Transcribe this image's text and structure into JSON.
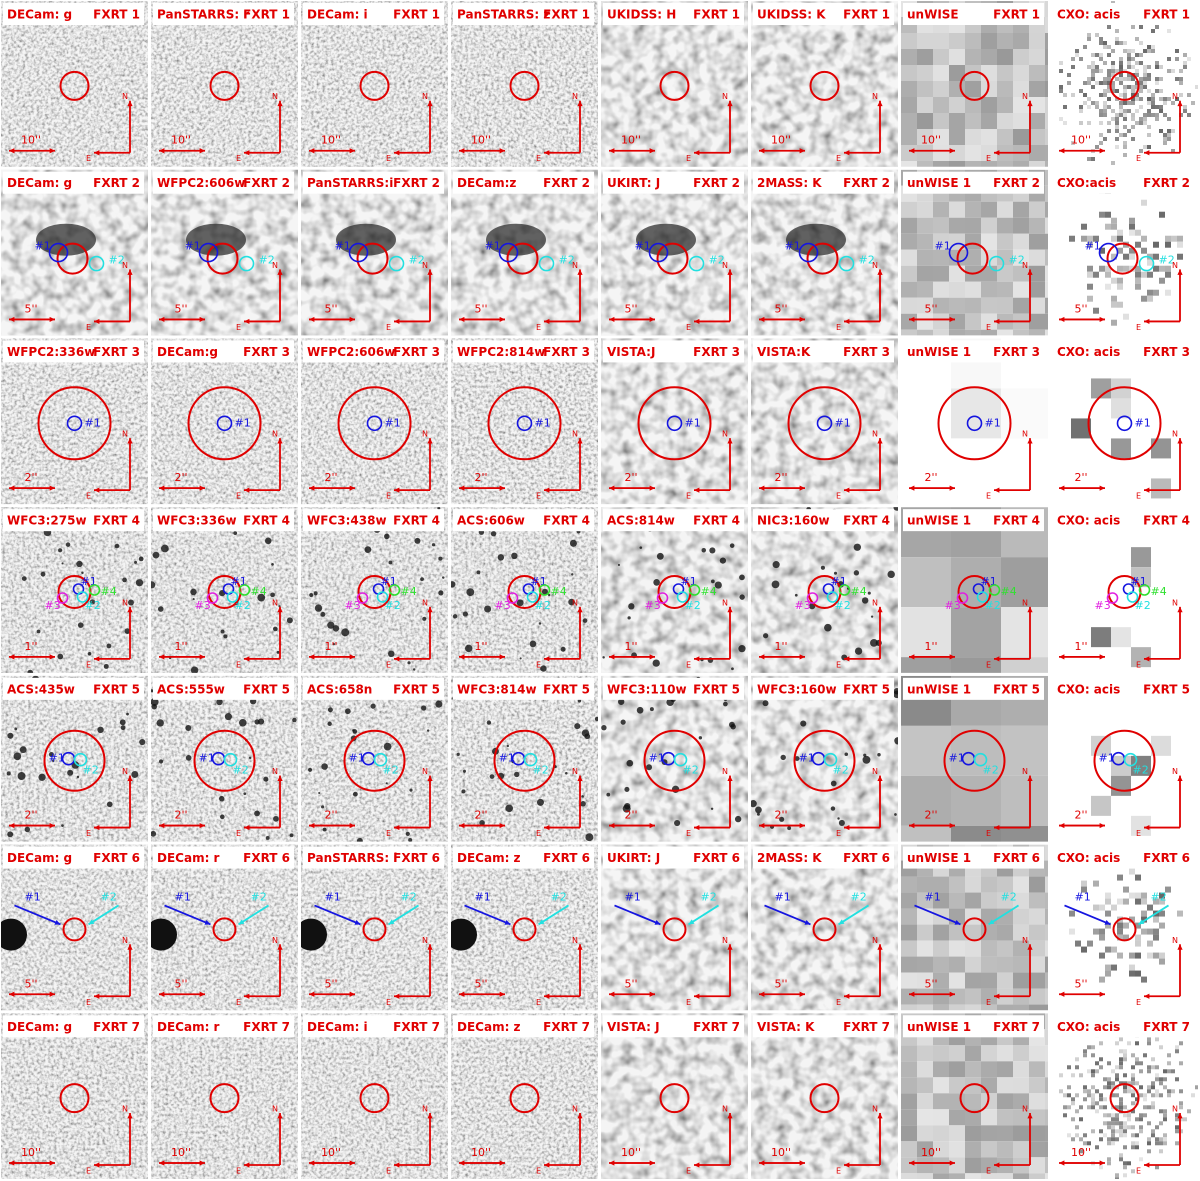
{
  "compass": {
    "north": "N",
    "east": "E"
  },
  "rows": [
    {
      "fxrt": "FXRT 1",
      "scale": "10''",
      "markers": [],
      "panels": [
        "DECam: g",
        "PanSTARRS: r",
        "DECam: i",
        "PanSTARRS: z",
        "UKIDSS: H",
        "UKIDSS: K",
        "unWISE",
        "CXO: acis"
      ]
    },
    {
      "fxrt": "FXRT 2",
      "scale": "5''",
      "markers": [
        {
          "label": "#1",
          "color": "#1515e0"
        },
        {
          "label": "#2",
          "color": "#22e0e0"
        }
      ],
      "panels": [
        "DECam: g",
        "WFPC2:606w",
        "PanSTARRS:i",
        "DECam:z",
        "UKIRT: J",
        "2MASS: K",
        "unWISE 1",
        "CXO:acis"
      ]
    },
    {
      "fxrt": "FXRT 3",
      "scale": "2''",
      "markers": [
        {
          "label": "#1",
          "color": "#1515e0"
        }
      ],
      "panels": [
        "WFPC2:336w",
        "DECam:g",
        "WFPC2:606w",
        "WFPC2:814w",
        "VISTA:J",
        "VISTA:K",
        "unWISE 1",
        "CXO: acis"
      ]
    },
    {
      "fxrt": "FXRT 4",
      "scale": "1''",
      "markers": [
        {
          "label": "#1",
          "color": "#1515e0"
        },
        {
          "label": "#2",
          "color": "#22e0e0"
        },
        {
          "label": "#3",
          "color": "#e020e0"
        },
        {
          "label": "#4",
          "color": "#30e030"
        }
      ],
      "panels": [
        "WFC3:275w",
        "WFC3:336w",
        "WFC3:438w",
        "ACS:606w",
        "ACS:814w",
        "NIC3:160w",
        "unWISE 1",
        "CXO: acis"
      ]
    },
    {
      "fxrt": "FXRT 5",
      "scale": "2''",
      "markers": [
        {
          "label": "#1",
          "color": "#1515e0"
        },
        {
          "label": "#2",
          "color": "#22e0e0"
        }
      ],
      "panels": [
        "ACS:435w",
        "ACS:555w",
        "ACS:658n",
        "WFC3:814w",
        "WFC3:110w",
        "WFC3:160w",
        "unWISE 1",
        "CXO: acis"
      ]
    },
    {
      "fxrt": "FXRT 6",
      "scale": "5''",
      "markers": [
        {
          "label": "#1",
          "color": "#1515e0"
        },
        {
          "label": "#2",
          "color": "#22e0e0"
        }
      ],
      "panels": [
        "DECam: g",
        "DECam: r",
        "PanSTARRS: i",
        "DECam: z",
        "UKIRT: J",
        "2MASS: K",
        "unWISE 1",
        "CXO: acis"
      ]
    },
    {
      "fxrt": "FXRT 7",
      "scale": "10''",
      "markers": [],
      "panels": [
        "DECam: g",
        "DECam: r",
        "DECam: i",
        "DECam: z",
        "VISTA: J",
        "VISTA: K",
        "unWISE 1",
        "CXO: acis"
      ]
    }
  ]
}
